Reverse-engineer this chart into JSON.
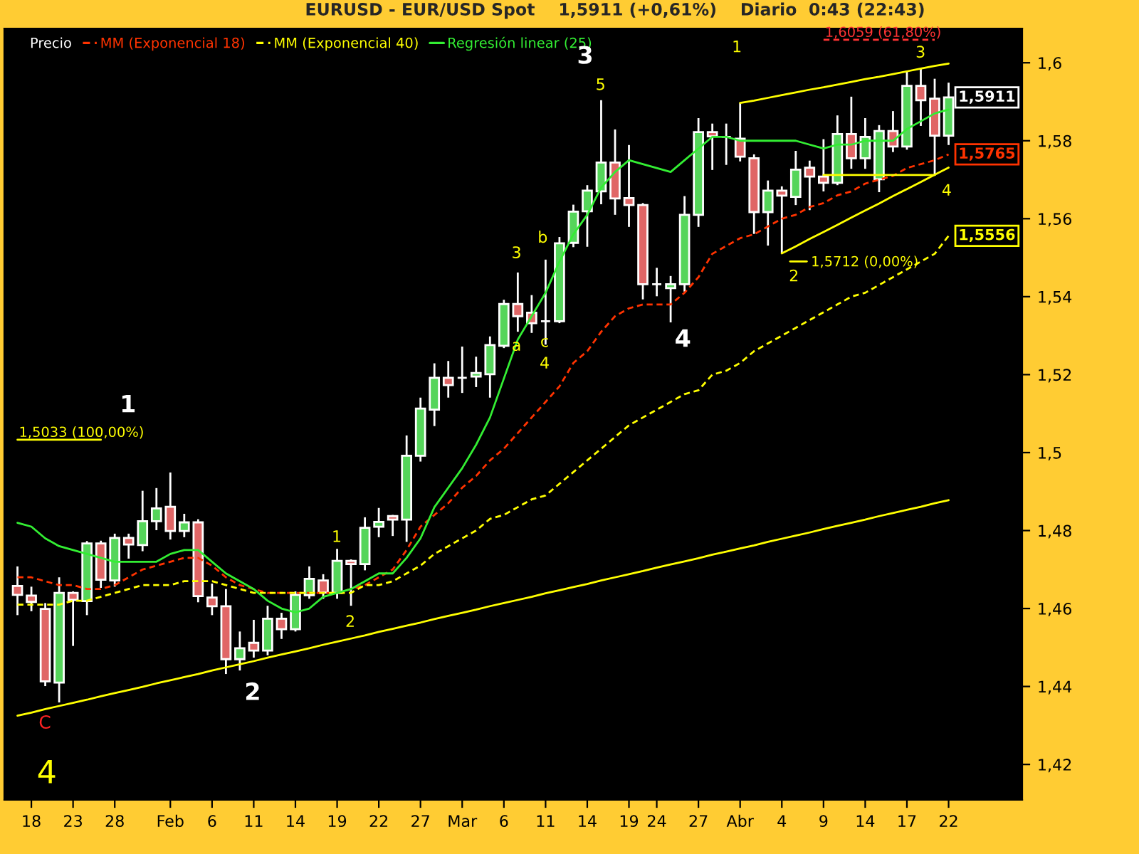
{
  "chart_data": {
    "type": "candlestick",
    "title": "EURUSD - EUR/USD Spot    1,5911 (+0,61%)    Diario  0:43 (22:43)",
    "categories": [
      null,
      "18",
      null,
      null,
      "23",
      null,
      null,
      "28",
      null,
      null,
      null,
      "Feb",
      null,
      null,
      "6",
      null,
      null,
      "11",
      null,
      null,
      "14",
      null,
      null,
      "19",
      null,
      null,
      "22",
      null,
      null,
      "27",
      null,
      null,
      "Mar",
      null,
      null,
      "6",
      null,
      null,
      "11",
      null,
      null,
      "14",
      null,
      null,
      "19",
      null,
      "24",
      null,
      null,
      "27",
      null,
      null,
      "Abr",
      null,
      null,
      "4",
      null,
      null,
      "9",
      null,
      null,
      "14",
      null,
      null,
      "17",
      null,
      null,
      "22"
    ],
    "ylim": [
      1.4109,
      1.6088
    ],
    "yticks": [
      {
        "value": 1.42,
        "label": "1,42"
      },
      {
        "value": 1.44,
        "label": "1,44"
      },
      {
        "value": 1.46,
        "label": "1,46"
      },
      {
        "value": 1.48,
        "label": "1,48"
      },
      {
        "value": 1.5,
        "label": "1,5"
      },
      {
        "value": 1.52,
        "label": "1,52"
      },
      {
        "value": 1.54,
        "label": "1,54"
      },
      {
        "value": 1.56,
        "label": "1,56"
      },
      {
        "value": 1.58,
        "label": "1,58"
      },
      {
        "value": 1.6,
        "label": "1,6"
      }
    ],
    "grid": false,
    "legend": "top left",
    "series": [
      {
        "name": "MM (Exponencial 18)",
        "type": "line",
        "color": "#ff3300",
        "line_style": "dashed",
        "values": [
          1.468,
          1.468,
          1.467,
          1.466,
          1.466,
          1.465,
          1.465,
          1.466,
          1.468,
          1.47,
          1.471,
          1.472,
          1.473,
          1.473,
          1.471,
          1.468,
          1.466,
          1.465,
          1.464,
          1.464,
          1.464,
          1.464,
          1.464,
          1.464,
          1.465,
          1.466,
          1.468,
          1.47,
          1.475,
          1.481,
          1.484,
          1.487,
          1.491,
          1.494,
          1.498,
          1.501,
          1.505,
          1.509,
          1.513,
          1.517,
          1.523,
          1.526,
          1.531,
          1.535,
          1.537,
          1.538,
          1.538,
          1.538,
          1.541,
          1.545,
          1.551,
          1.553,
          1.555,
          1.556,
          1.558,
          1.56,
          1.561,
          1.563,
          1.564,
          1.566,
          1.567,
          1.569,
          1.57,
          1.571,
          1.573,
          1.574,
          1.575,
          1.5765
        ],
        "value_labels": [
          null,
          null,
          null,
          null,
          null,
          null,
          null,
          null,
          null,
          null,
          null,
          null,
          null,
          null,
          null,
          null,
          null,
          null,
          null,
          null,
          null,
          null,
          null,
          null,
          null,
          null,
          null,
          null,
          null,
          null,
          null,
          null,
          null,
          null,
          null,
          null,
          null,
          null,
          null,
          null,
          null,
          null,
          null,
          null,
          null,
          null,
          null,
          null,
          null,
          null,
          null,
          null,
          null,
          null,
          null,
          null,
          null,
          null,
          null,
          null,
          null,
          null,
          null,
          null,
          null,
          null,
          null,
          "1,5765"
        ]
      },
      {
        "name": "MM (Exponencial 40)",
        "type": "line",
        "color": "#ffff00",
        "line_style": "dashed",
        "values": [
          1.461,
          1.461,
          1.461,
          1.461,
          1.462,
          1.462,
          1.463,
          1.464,
          1.465,
          1.466,
          1.466,
          1.466,
          1.467,
          1.467,
          1.467,
          1.466,
          1.465,
          1.464,
          1.464,
          1.464,
          1.464,
          1.464,
          1.464,
          1.464,
          1.464,
          1.466,
          1.466,
          1.467,
          1.469,
          1.471,
          1.474,
          1.476,
          1.478,
          1.48,
          1.483,
          1.484,
          1.486,
          1.488,
          1.489,
          1.492,
          1.495,
          1.498,
          1.501,
          1.504,
          1.507,
          1.509,
          1.511,
          1.513,
          1.515,
          1.516,
          1.52,
          1.521,
          1.523,
          1.526,
          1.528,
          1.53,
          1.532,
          1.534,
          1.536,
          1.538,
          1.54,
          1.541,
          1.543,
          1.545,
          1.547,
          1.549,
          1.551,
          1.5556
        ],
        "value_labels": [
          null,
          null,
          null,
          null,
          null,
          null,
          null,
          null,
          null,
          null,
          null,
          null,
          null,
          null,
          null,
          null,
          null,
          null,
          null,
          null,
          null,
          null,
          null,
          null,
          null,
          null,
          null,
          null,
          null,
          null,
          null,
          null,
          null,
          null,
          null,
          null,
          null,
          null,
          null,
          null,
          null,
          null,
          null,
          null,
          null,
          null,
          null,
          null,
          null,
          null,
          null,
          null,
          null,
          null,
          null,
          null,
          null,
          null,
          null,
          null,
          null,
          null,
          null,
          null,
          null,
          null,
          null,
          "1,5556"
        ]
      },
      {
        "name": "Regresión linear (25)",
        "type": "line",
        "color": "#33ee33",
        "line_style": "solid",
        "values": [
          1.482,
          1.481,
          1.478,
          1.476,
          1.475,
          1.474,
          1.473,
          1.472,
          1.472,
          1.472,
          1.472,
          1.474,
          1.475,
          1.475,
          1.472,
          1.469,
          1.467,
          1.465,
          1.462,
          1.46,
          1.459,
          1.46,
          1.463,
          1.464,
          1.465,
          1.467,
          1.469,
          1.469,
          1.473,
          1.478,
          1.486,
          1.491,
          1.496,
          1.502,
          1.509,
          1.519,
          1.529,
          1.535,
          1.541,
          1.549,
          1.556,
          1.561,
          1.568,
          1.572,
          1.575,
          1.574,
          1.573,
          1.572,
          1.575,
          1.578,
          1.581,
          1.581,
          1.58,
          1.58,
          1.58,
          1.58,
          1.58,
          1.579,
          1.578,
          1.579,
          1.579,
          1.58,
          1.58,
          1.58,
          1.583,
          1.585,
          1.587,
          1.588
        ]
      },
      {
        "type": "line",
        "color": "#ffff00",
        "line_style": "solid",
        "values": [
          1.4325,
          1.4333,
          1.4342,
          1.435,
          1.4358,
          1.4366,
          1.4375,
          1.4383,
          1.4391,
          1.4399,
          1.4408,
          1.4416,
          1.4424,
          1.4432,
          1.4441,
          1.4449,
          1.4457,
          1.4465,
          1.4474,
          1.4482,
          1.449,
          1.4498,
          1.4507,
          1.4515,
          1.4523,
          1.4531,
          1.454,
          1.4548,
          1.4556,
          1.4564,
          1.4573,
          1.4581,
          1.4589,
          1.4597,
          1.4606,
          1.4614,
          1.4622,
          1.463,
          1.4639,
          1.4647,
          1.4655,
          1.4663,
          1.4672,
          1.468,
          1.4688,
          1.4696,
          1.4705,
          1.4713,
          1.4721,
          1.4729,
          1.4738,
          1.4746,
          1.4754,
          1.4762,
          1.4771,
          1.4779,
          1.4787,
          1.4795,
          1.4804,
          1.4812,
          1.482,
          1.4828,
          1.4837,
          1.4845,
          1.4853,
          1.4861,
          1.487,
          1.4878
        ]
      },
      {
        "type": "line",
        "color": "#ffff00",
        "line_style": "solid",
        "values": [
          null,
          null,
          null,
          null,
          null,
          null,
          null,
          null,
          null,
          null,
          null,
          null,
          null,
          null,
          null,
          null,
          null,
          null,
          null,
          null,
          null,
          null,
          null,
          null,
          null,
          null,
          null,
          null,
          null,
          null,
          null,
          null,
          null,
          null,
          null,
          null,
          null,
          null,
          null,
          null,
          null,
          null,
          null,
          null,
          null,
          null,
          null,
          null,
          null,
          null,
          null,
          null,
          1.5897,
          1.5903,
          1.591,
          1.5917,
          1.5924,
          1.5931,
          1.5937,
          1.5944,
          1.5951,
          1.5958,
          1.5964,
          1.5971,
          1.5978,
          1.5985,
          1.5992,
          1.5998
        ]
      },
      {
        "type": "line",
        "color": "#ffff00",
        "line_style": "solid",
        "values": [
          null,
          null,
          null,
          null,
          null,
          null,
          null,
          null,
          null,
          null,
          null,
          null,
          null,
          null,
          null,
          null,
          null,
          null,
          null,
          null,
          null,
          null,
          null,
          null,
          null,
          null,
          null,
          null,
          null,
          null,
          null,
          null,
          null,
          null,
          null,
          null,
          null,
          null,
          null,
          null,
          null,
          null,
          null,
          null,
          null,
          null,
          null,
          null,
          null,
          null,
          null,
          null,
          null,
          null,
          null,
          1.5511,
          1.5529,
          1.5548,
          1.5566,
          1.5584,
          1.5603,
          1.5621,
          1.5639,
          1.5658,
          1.5676,
          1.5694,
          1.5713,
          1.5731
        ]
      },
      {
        "name": "1,5033 (100,00%)",
        "type": "line",
        "color": "#ffff00",
        "line_style": "solid",
        "values": [
          1.5033,
          1.5033,
          1.5033,
          1.5033,
          1.5033,
          1.5033,
          1.5033,
          null,
          null,
          null,
          null,
          null,
          null,
          null,
          null,
          null,
          null,
          null,
          null,
          null,
          null,
          null,
          null,
          null,
          null,
          null,
          null,
          null,
          null,
          null,
          null,
          null,
          null,
          null,
          null,
          null,
          null,
          null,
          null,
          null,
          null,
          null,
          null,
          null,
          null,
          null,
          null,
          null,
          null,
          null,
          null,
          null,
          null,
          null,
          null,
          null,
          null,
          null,
          null,
          null,
          null,
          null,
          null,
          null,
          null,
          null,
          null,
          null
        ]
      },
      {
        "name": "1,5712 (0,00%)",
        "type": "line",
        "color": "#ffff00",
        "line_style": "solid",
        "values": [
          null,
          null,
          null,
          null,
          null,
          null,
          null,
          null,
          null,
          null,
          null,
          null,
          null,
          null,
          null,
          null,
          null,
          null,
          null,
          null,
          null,
          null,
          null,
          null,
          null,
          null,
          null,
          null,
          null,
          null,
          null,
          null,
          null,
          null,
          null,
          null,
          null,
          null,
          null,
          null,
          null,
          null,
          null,
          null,
          null,
          null,
          null,
          null,
          null,
          null,
          null,
          null,
          null,
          null,
          null,
          null,
          null,
          null,
          1.5712,
          1.5712,
          1.5712,
          1.5712,
          1.5712,
          1.5712,
          1.5712,
          1.5712,
          1.5712,
          null
        ]
      },
      {
        "name": "1,6059 (61,80%)",
        "type": "line",
        "color": "#ff3333",
        "line_style": "dashed",
        "values": [
          null,
          null,
          null,
          null,
          null,
          null,
          null,
          null,
          null,
          null,
          null,
          null,
          null,
          null,
          null,
          null,
          null,
          null,
          null,
          null,
          null,
          null,
          null,
          null,
          null,
          null,
          null,
          null,
          null,
          null,
          null,
          null,
          null,
          null,
          null,
          null,
          null,
          null,
          null,
          null,
          null,
          null,
          null,
          null,
          null,
          null,
          null,
          null,
          null,
          null,
          null,
          null,
          null,
          null,
          null,
          null,
          null,
          null,
          1.6059,
          1.6059,
          1.6059,
          1.6059,
          1.6059,
          1.6059,
          1.6059,
          1.6059,
          1.6059,
          null
        ]
      },
      {
        "name": "Precio",
        "color": "#ffffff",
        "colors": [
          "#e06666",
          "#e06666",
          "#e06666",
          "#55d55a",
          "#e06666",
          "#55d55a",
          "#e06666",
          "#55d55a",
          "#e06666",
          "#55d55a",
          "#55d55a",
          "#e06666",
          "#55d55a",
          "#e06666",
          "#e06666",
          "#e06666",
          "#55d55a",
          "#e06666",
          "#55d55a",
          "#e06666",
          "#55d55a",
          "#55d55a",
          "#e06666",
          "#55d55a",
          "#e06666",
          "#55d55a",
          "#55d55a",
          "#e06666",
          "#55d55a",
          "#55d55a",
          "#55d55a",
          "#e06666",
          "#ffffff",
          "#55d55a",
          "#55d55a",
          "#55d55a",
          "#e06666",
          "#e06666",
          "#ffffff",
          "#55d55a",
          "#55d55a",
          "#55d55a",
          "#55d55a",
          "#e06666",
          "#e06666",
          "#e06666",
          "#ffffff",
          "#55d55a",
          "#55d55a",
          "#55d55a",
          "#e06666",
          "#ffffff",
          "#e06666",
          "#e06666",
          "#55d55a",
          "#e06666",
          "#55d55a",
          "#e06666",
          "#e06666",
          "#55d55a",
          "#e06666",
          "#55d55a",
          "#55d55a",
          "#e06666",
          "#55d55a",
          "#e06666",
          "#e06666",
          "#55d55a"
        ],
        "ohlc": [
          [
            1.4658,
            1.4708,
            1.4583,
            1.4635
          ],
          [
            1.4633,
            1.4656,
            1.4593,
            1.4617
          ],
          [
            1.4599,
            1.4614,
            1.4401,
            1.4413
          ],
          [
            1.441,
            1.468,
            1.4359,
            1.464
          ],
          [
            1.464,
            1.4644,
            1.4504,
            1.4622
          ],
          [
            1.4619,
            1.4773,
            1.4583,
            1.4767
          ],
          [
            1.4767,
            1.4774,
            1.4653,
            1.4674
          ],
          [
            1.4672,
            1.4792,
            1.4656,
            1.4781
          ],
          [
            1.4781,
            1.4792,
            1.4728,
            1.4764
          ],
          [
            1.4763,
            1.4902,
            1.4747,
            1.4824
          ],
          [
            1.4824,
            1.4909,
            1.4801,
            1.4857
          ],
          [
            1.4861,
            1.4949,
            1.4777,
            1.4799
          ],
          [
            1.4799,
            1.4843,
            1.4783,
            1.4821
          ],
          [
            1.4821,
            1.4829,
            1.4616,
            1.4632
          ],
          [
            1.4628,
            1.4664,
            1.4583,
            1.4606
          ],
          [
            1.4606,
            1.465,
            1.4432,
            1.447
          ],
          [
            1.447,
            1.4541,
            1.4441,
            1.4498
          ],
          [
            1.4512,
            1.4571,
            1.4474,
            1.4492
          ],
          [
            1.4492,
            1.4607,
            1.448,
            1.4574
          ],
          [
            1.4574,
            1.4589,
            1.4522,
            1.4547
          ],
          [
            1.4547,
            1.4644,
            1.4541,
            1.4635
          ],
          [
            1.4634,
            1.4708,
            1.4625,
            1.4676
          ],
          [
            1.4672,
            1.4688,
            1.4625,
            1.4641
          ],
          [
            1.464,
            1.4753,
            1.4625,
            1.4722
          ],
          [
            1.4722,
            1.4726,
            1.4607,
            1.4714
          ],
          [
            1.4714,
            1.4834,
            1.4698,
            1.4807
          ],
          [
            1.481,
            1.4858,
            1.4783,
            1.4822
          ],
          [
            1.4837,
            1.484,
            1.4786,
            1.4828
          ],
          [
            1.4828,
            1.5044,
            1.4771,
            1.4992
          ],
          [
            1.4992,
            1.5141,
            1.4977,
            1.5113
          ],
          [
            1.511,
            1.5229,
            1.5068,
            1.5192
          ],
          [
            1.5192,
            1.5235,
            1.5141,
            1.5173
          ],
          [
            1.5192,
            1.5272,
            1.5153,
            1.5192
          ],
          [
            1.5195,
            1.5246,
            1.5168,
            1.5204
          ],
          [
            1.5201,
            1.5298,
            1.5141,
            1.5276
          ],
          [
            1.5274,
            1.5392,
            1.5268,
            1.5381
          ],
          [
            1.5381,
            1.5462,
            1.531,
            1.535
          ],
          [
            1.5359,
            1.5404,
            1.5307,
            1.5332
          ],
          [
            1.5337,
            1.5495,
            1.5277,
            1.5337
          ],
          [
            1.5337,
            1.5553,
            1.5332,
            1.5537
          ],
          [
            1.5538,
            1.5636,
            1.5527,
            1.5618
          ],
          [
            1.5619,
            1.5686,
            1.5528,
            1.5672
          ],
          [
            1.567,
            1.5904,
            1.5637,
            1.5744
          ],
          [
            1.5744,
            1.5829,
            1.561,
            1.5652
          ],
          [
            1.5653,
            1.5789,
            1.5579,
            1.5635
          ],
          [
            1.5635,
            1.564,
            1.5393,
            1.5432
          ],
          [
            1.5432,
            1.5474,
            1.5401,
            1.5432
          ],
          [
            1.5422,
            1.5453,
            1.5334,
            1.5432
          ],
          [
            1.5432,
            1.5658,
            1.5413,
            1.561
          ],
          [
            1.561,
            1.5858,
            1.5579,
            1.5822
          ],
          [
            1.5822,
            1.5844,
            1.5725,
            1.5811
          ],
          [
            1.581,
            1.5844,
            1.5738,
            1.581
          ],
          [
            1.5805,
            1.5898,
            1.5747,
            1.5759
          ],
          [
            1.5755,
            1.5765,
            1.5561,
            1.5617
          ],
          [
            1.5617,
            1.5698,
            1.5531,
            1.5672
          ],
          [
            1.5672,
            1.5683,
            1.551,
            1.5659
          ],
          [
            1.5656,
            1.5774,
            1.5635,
            1.5726
          ],
          [
            1.5731,
            1.5749,
            1.5622,
            1.5708
          ],
          [
            1.5708,
            1.5804,
            1.567,
            1.5692
          ],
          [
            1.5692,
            1.5865,
            1.5686,
            1.5817
          ],
          [
            1.5817,
            1.5913,
            1.5728,
            1.5755
          ],
          [
            1.5755,
            1.5858,
            1.5728,
            1.581
          ],
          [
            1.5701,
            1.584,
            1.5668,
            1.5825
          ],
          [
            1.5825,
            1.5876,
            1.5771,
            1.5785
          ],
          [
            1.5785,
            1.5977,
            1.5777,
            1.5941
          ],
          [
            1.5941,
            1.5985,
            1.5838,
            1.5904
          ],
          [
            1.5908,
            1.5959,
            1.571,
            1.5813
          ],
          [
            1.5813,
            1.5949,
            1.5789,
            1.5911
          ]
        ],
        "value_labels": [
          null,
          null,
          null,
          null,
          null,
          null,
          null,
          null,
          null,
          null,
          null,
          null,
          null,
          null,
          null,
          null,
          null,
          null,
          null,
          null,
          null,
          null,
          null,
          null,
          null,
          null,
          null,
          null,
          null,
          null,
          null,
          null,
          null,
          null,
          null,
          null,
          null,
          null,
          null,
          null,
          null,
          null,
          null,
          null,
          null,
          null,
          null,
          null,
          null,
          null,
          null,
          null,
          null,
          null,
          null,
          null,
          null,
          null,
          null,
          null,
          null,
          null,
          null,
          null,
          null,
          null,
          null,
          "1,5911"
        ]
      }
    ],
    "annotations": [
      "1",
      "2",
      "3",
      "4",
      "4",
      "C",
      "1",
      "2",
      "3",
      "a",
      "b",
      "c",
      "4",
      "5",
      "1",
      "2",
      "3",
      "4"
    ]
  }
}
